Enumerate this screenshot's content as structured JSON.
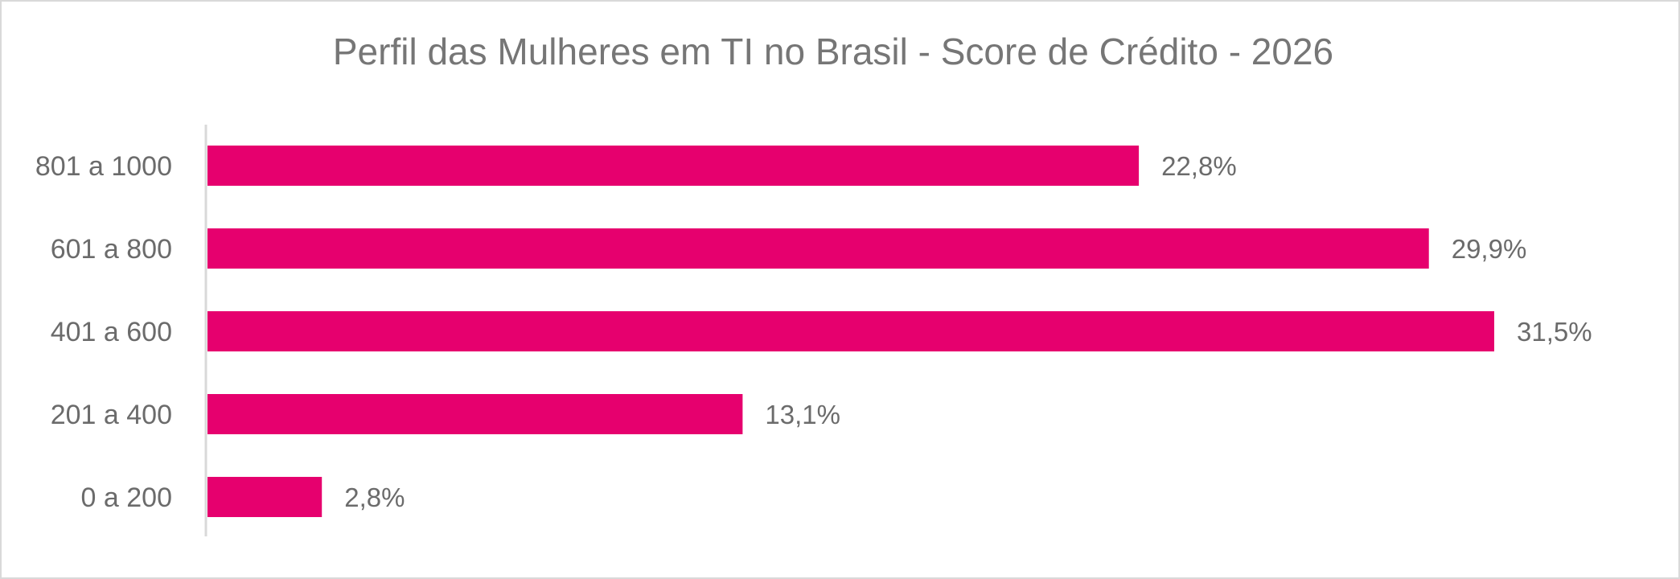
{
  "chart_data": {
    "type": "bar",
    "orientation": "horizontal",
    "title": "Perfil das Mulheres em TI no Brasil - Score de Crédito - 2026",
    "categories": [
      "801 a 1000",
      "601 a 800",
      "401 a 600",
      "201 a 400",
      "0 a 200"
    ],
    "values": [
      22.8,
      29.9,
      31.5,
      13.1,
      2.8
    ],
    "data_labels": [
      "22,8%",
      "29,9%",
      "31,5%",
      "13,1%",
      "2,8%"
    ],
    "xlim": [
      0,
      35
    ],
    "grid": false,
    "legend": "none",
    "bar_color": "#E6006E"
  }
}
